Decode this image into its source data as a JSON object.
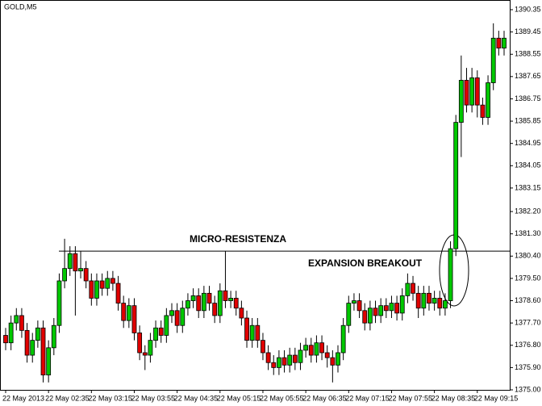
{
  "chart_data": {
    "type": "candlestick",
    "title": "GOLD,M5",
    "annotations": [
      "MICRO-RESISTENZA",
      "EXPANSION BREAKOUT"
    ],
    "resistance_level": 1380.6,
    "up_color": "#00c800",
    "down_color": "#e00000",
    "ylim": [
      1375.0,
      1390.35
    ],
    "yticks": [
      {
        "value": 1375.0,
        "label": "1375.00"
      },
      {
        "value": 1375.9,
        "label": "1375.90"
      },
      {
        "value": 1376.8,
        "label": "1376.80"
      },
      {
        "value": 1377.7,
        "label": "1377.70"
      },
      {
        "value": 1378.6,
        "label": "1378.60"
      },
      {
        "value": 1379.5,
        "label": "1379.50"
      },
      {
        "value": 1380.4,
        "label": "1380.40"
      },
      {
        "value": 1381.3,
        "label": "1381.30"
      },
      {
        "value": 1382.2,
        "label": "1382.20"
      },
      {
        "value": 1383.15,
        "label": "1383.15"
      },
      {
        "value": 1384.05,
        "label": "1384.05"
      },
      {
        "value": 1384.95,
        "label": "1384.95"
      },
      {
        "value": 1385.85,
        "label": "1385.85"
      },
      {
        "value": 1386.75,
        "label": "1386.75"
      },
      {
        "value": 1387.65,
        "label": "1387.65"
      },
      {
        "value": 1388.55,
        "label": "1388.55"
      },
      {
        "value": 1389.45,
        "label": "1389.45"
      },
      {
        "value": 1390.35,
        "label": "1390.35"
      }
    ],
    "categories": [
      "22 May 2013",
      null,
      null,
      null,
      null,
      null,
      null,
      null,
      "22 May 02:35",
      null,
      null,
      null,
      null,
      null,
      null,
      null,
      "22 May 03:15",
      null,
      null,
      null,
      null,
      null,
      null,
      null,
      "22 May 03:55",
      null,
      null,
      null,
      null,
      null,
      null,
      null,
      "22 May 04:35",
      null,
      null,
      null,
      null,
      null,
      null,
      null,
      "22 May 05:15",
      null,
      null,
      null,
      null,
      null,
      null,
      null,
      "22 May 05:55",
      null,
      null,
      null,
      null,
      null,
      null,
      null,
      "22 May 06:35",
      null,
      null,
      null,
      null,
      null,
      null,
      null,
      "22 May 07:15",
      null,
      null,
      null,
      null,
      null,
      null,
      null,
      "22 May 07:55",
      null,
      null,
      null,
      null,
      null,
      null,
      null,
      "22 May 08:35",
      null,
      null,
      null,
      null,
      null,
      null,
      null,
      "22 May 09:15",
      null,
      null,
      null,
      null,
      null
    ],
    "open": [
      1377.2,
      1376.9,
      1377.7,
      1378.0,
      1377.4,
      1376.4,
      1377.0,
      1377.5,
      1375.6,
      1376.7,
      1377.6,
      1379.4,
      1379.9,
      1380.5,
      1379.8,
      1379.9,
      1379.4,
      1378.7,
      1379.4,
      1379.1,
      1379.5,
      1379.3,
      1378.5,
      1377.8,
      1378.4,
      1377.3,
      1376.5,
      1376.4,
      1377.0,
      1377.5,
      1377.2,
      1378.0,
      1378.2,
      1377.6,
      1378.3,
      1378.6,
      1378.8,
      1378.2,
      1378.9,
      1378.5,
      1378.0,
      1379.0,
      1378.6,
      1378.7,
      1378.3,
      1377.9,
      1377.0,
      1377.6,
      1377.0,
      1376.5,
      1376.1,
      1375.9,
      1376.3,
      1376.0,
      1376.4,
      1376.1,
      1376.6,
      1376.8,
      1376.4,
      1376.9,
      1376.5,
      1376.3,
      1376.0,
      1376.5,
      1377.6,
      1378.5,
      1378.6,
      1378.2,
      1377.7,
      1378.3,
      1378.0,
      1378.4,
      1378.2,
      1378.5,
      1378.1,
      1378.8,
      1379.3,
      1378.9,
      1378.3,
      1378.9,
      1378.5,
      1378.7,
      1378.3,
      1378.6,
      1380.7,
      1385.8,
      1387.5,
      1386.5,
      1387.6,
      1386.5,
      1386.0,
      1387.4,
      1389.2,
      1388.8
    ],
    "high": [
      1377.5,
      1378.0,
      1378.3,
      1378.3,
      1377.7,
      1377.3,
      1377.8,
      1377.8,
      1377.0,
      1377.9,
      1379.7,
      1381.1,
      1380.8,
      1380.8,
      1380.6,
      1380.2,
      1379.7,
      1379.7,
      1379.7,
      1379.8,
      1379.8,
      1379.6,
      1378.8,
      1378.7,
      1378.7,
      1377.6,
      1376.8,
      1377.3,
      1377.8,
      1377.8,
      1378.3,
      1378.5,
      1378.5,
      1378.6,
      1378.9,
      1379.1,
      1379.1,
      1379.2,
      1379.2,
      1378.8,
      1379.3,
      1380.6,
      1379.0,
      1379.0,
      1378.6,
      1378.2,
      1377.9,
      1377.9,
      1377.3,
      1376.8,
      1376.4,
      1376.6,
      1376.6,
      1376.7,
      1376.7,
      1376.9,
      1377.1,
      1377.1,
      1377.2,
      1377.2,
      1376.8,
      1376.6,
      1376.8,
      1377.9,
      1378.8,
      1378.9,
      1378.9,
      1378.5,
      1378.6,
      1378.6,
      1378.7,
      1378.7,
      1378.8,
      1378.8,
      1379.1,
      1379.7,
      1379.6,
      1379.2,
      1379.2,
      1379.2,
      1379.0,
      1379.0,
      1378.9,
      1381.0,
      1386.1,
      1388.5,
      1388.0,
      1388.0,
      1387.9,
      1386.8,
      1387.7,
      1389.8,
      1389.5,
      1389.5
    ],
    "low": [
      1376.6,
      1376.6,
      1377.4,
      1377.1,
      1376.1,
      1376.1,
      1376.7,
      1375.3,
      1375.3,
      1376.4,
      1377.3,
      1379.1,
      1379.6,
      1378.0,
      1379.5,
      1379.1,
      1378.4,
      1378.4,
      1378.8,
      1378.8,
      1379.0,
      1378.2,
      1377.5,
      1377.5,
      1377.0,
      1376.2,
      1375.8,
      1376.1,
      1376.7,
      1376.9,
      1376.9,
      1377.7,
      1377.3,
      1377.3,
      1378.0,
      1378.3,
      1377.9,
      1377.9,
      1378.2,
      1377.7,
      1377.7,
      1378.3,
      1378.3,
      1378.0,
      1377.6,
      1376.7,
      1376.7,
      1376.7,
      1376.2,
      1375.8,
      1375.6,
      1375.6,
      1375.7,
      1375.7,
      1375.8,
      1375.8,
      1376.3,
      1376.1,
      1376.1,
      1376.2,
      1375.9,
      1375.3,
      1375.7,
      1376.2,
      1377.3,
      1378.2,
      1377.9,
      1377.4,
      1377.4,
      1377.7,
      1377.7,
      1377.9,
      1377.9,
      1377.8,
      1377.8,
      1378.5,
      1378.6,
      1377.9,
      1378.0,
      1378.2,
      1378.2,
      1378.0,
      1378.0,
      1378.3,
      1380.4,
      1384.4,
      1386.2,
      1386.2,
      1386.0,
      1385.7,
      1385.7,
      1387.1,
      1388.5,
      1388.5
    ],
    "close": [
      1376.9,
      1377.7,
      1378.0,
      1377.4,
      1376.4,
      1377.0,
      1377.5,
      1375.6,
      1376.7,
      1377.6,
      1379.4,
      1379.9,
      1380.5,
      1379.8,
      1379.9,
      1379.4,
      1378.7,
      1379.4,
      1379.1,
      1379.5,
      1379.3,
      1378.5,
      1377.8,
      1378.4,
      1377.3,
      1376.5,
      1376.4,
      1377.0,
      1377.5,
      1377.2,
      1378.0,
      1378.2,
      1377.6,
      1378.3,
      1378.6,
      1378.8,
      1378.2,
      1378.9,
      1378.5,
      1378.0,
      1379.0,
      1378.6,
      1378.7,
      1378.3,
      1377.9,
      1377.0,
      1377.6,
      1377.0,
      1376.5,
      1376.1,
      1375.9,
      1376.3,
      1376.0,
      1376.4,
      1376.1,
      1376.6,
      1376.8,
      1376.4,
      1376.9,
      1376.5,
      1376.3,
      1376.0,
      1376.5,
      1377.6,
      1378.5,
      1378.6,
      1378.2,
      1377.7,
      1378.3,
      1378.0,
      1378.4,
      1378.2,
      1378.5,
      1378.1,
      1378.8,
      1379.3,
      1378.9,
      1378.3,
      1378.9,
      1378.5,
      1378.7,
      1378.3,
      1378.6,
      1380.7,
      1385.8,
      1387.5,
      1386.5,
      1387.6,
      1386.5,
      1386.0,
      1387.4,
      1389.2,
      1388.8,
      1389.2
    ]
  }
}
